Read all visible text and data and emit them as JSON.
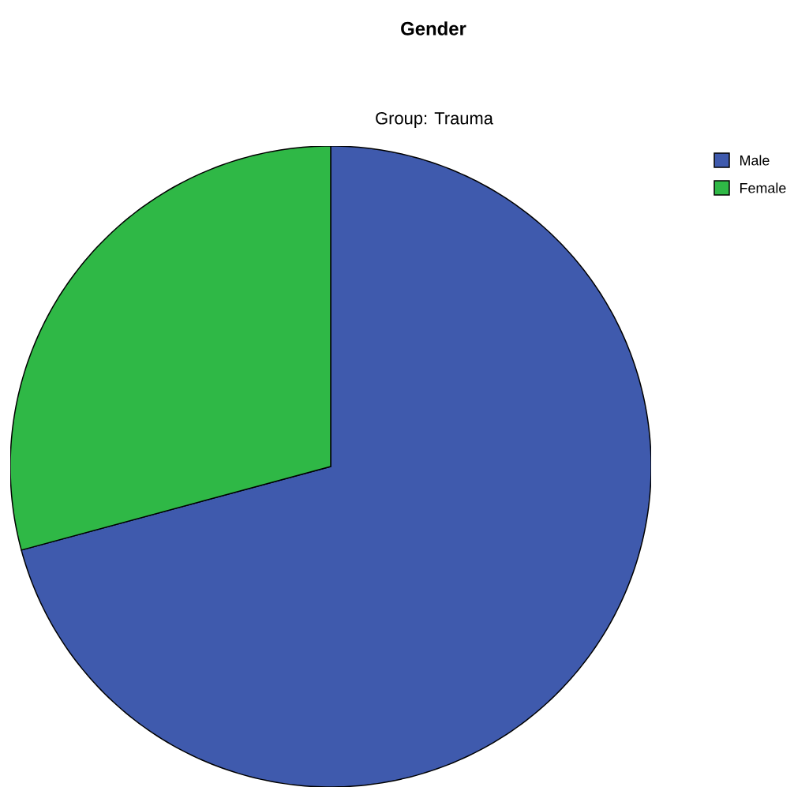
{
  "chart_data": {
    "type": "pie",
    "title": "Gender",
    "subtitle": "Group: Trauma",
    "categories": [
      "Male",
      "Female"
    ],
    "values": [
      70.8,
      29.2
    ],
    "colors": [
      "#3f5aad",
      "#2fb846"
    ],
    "legend": "top right"
  }
}
